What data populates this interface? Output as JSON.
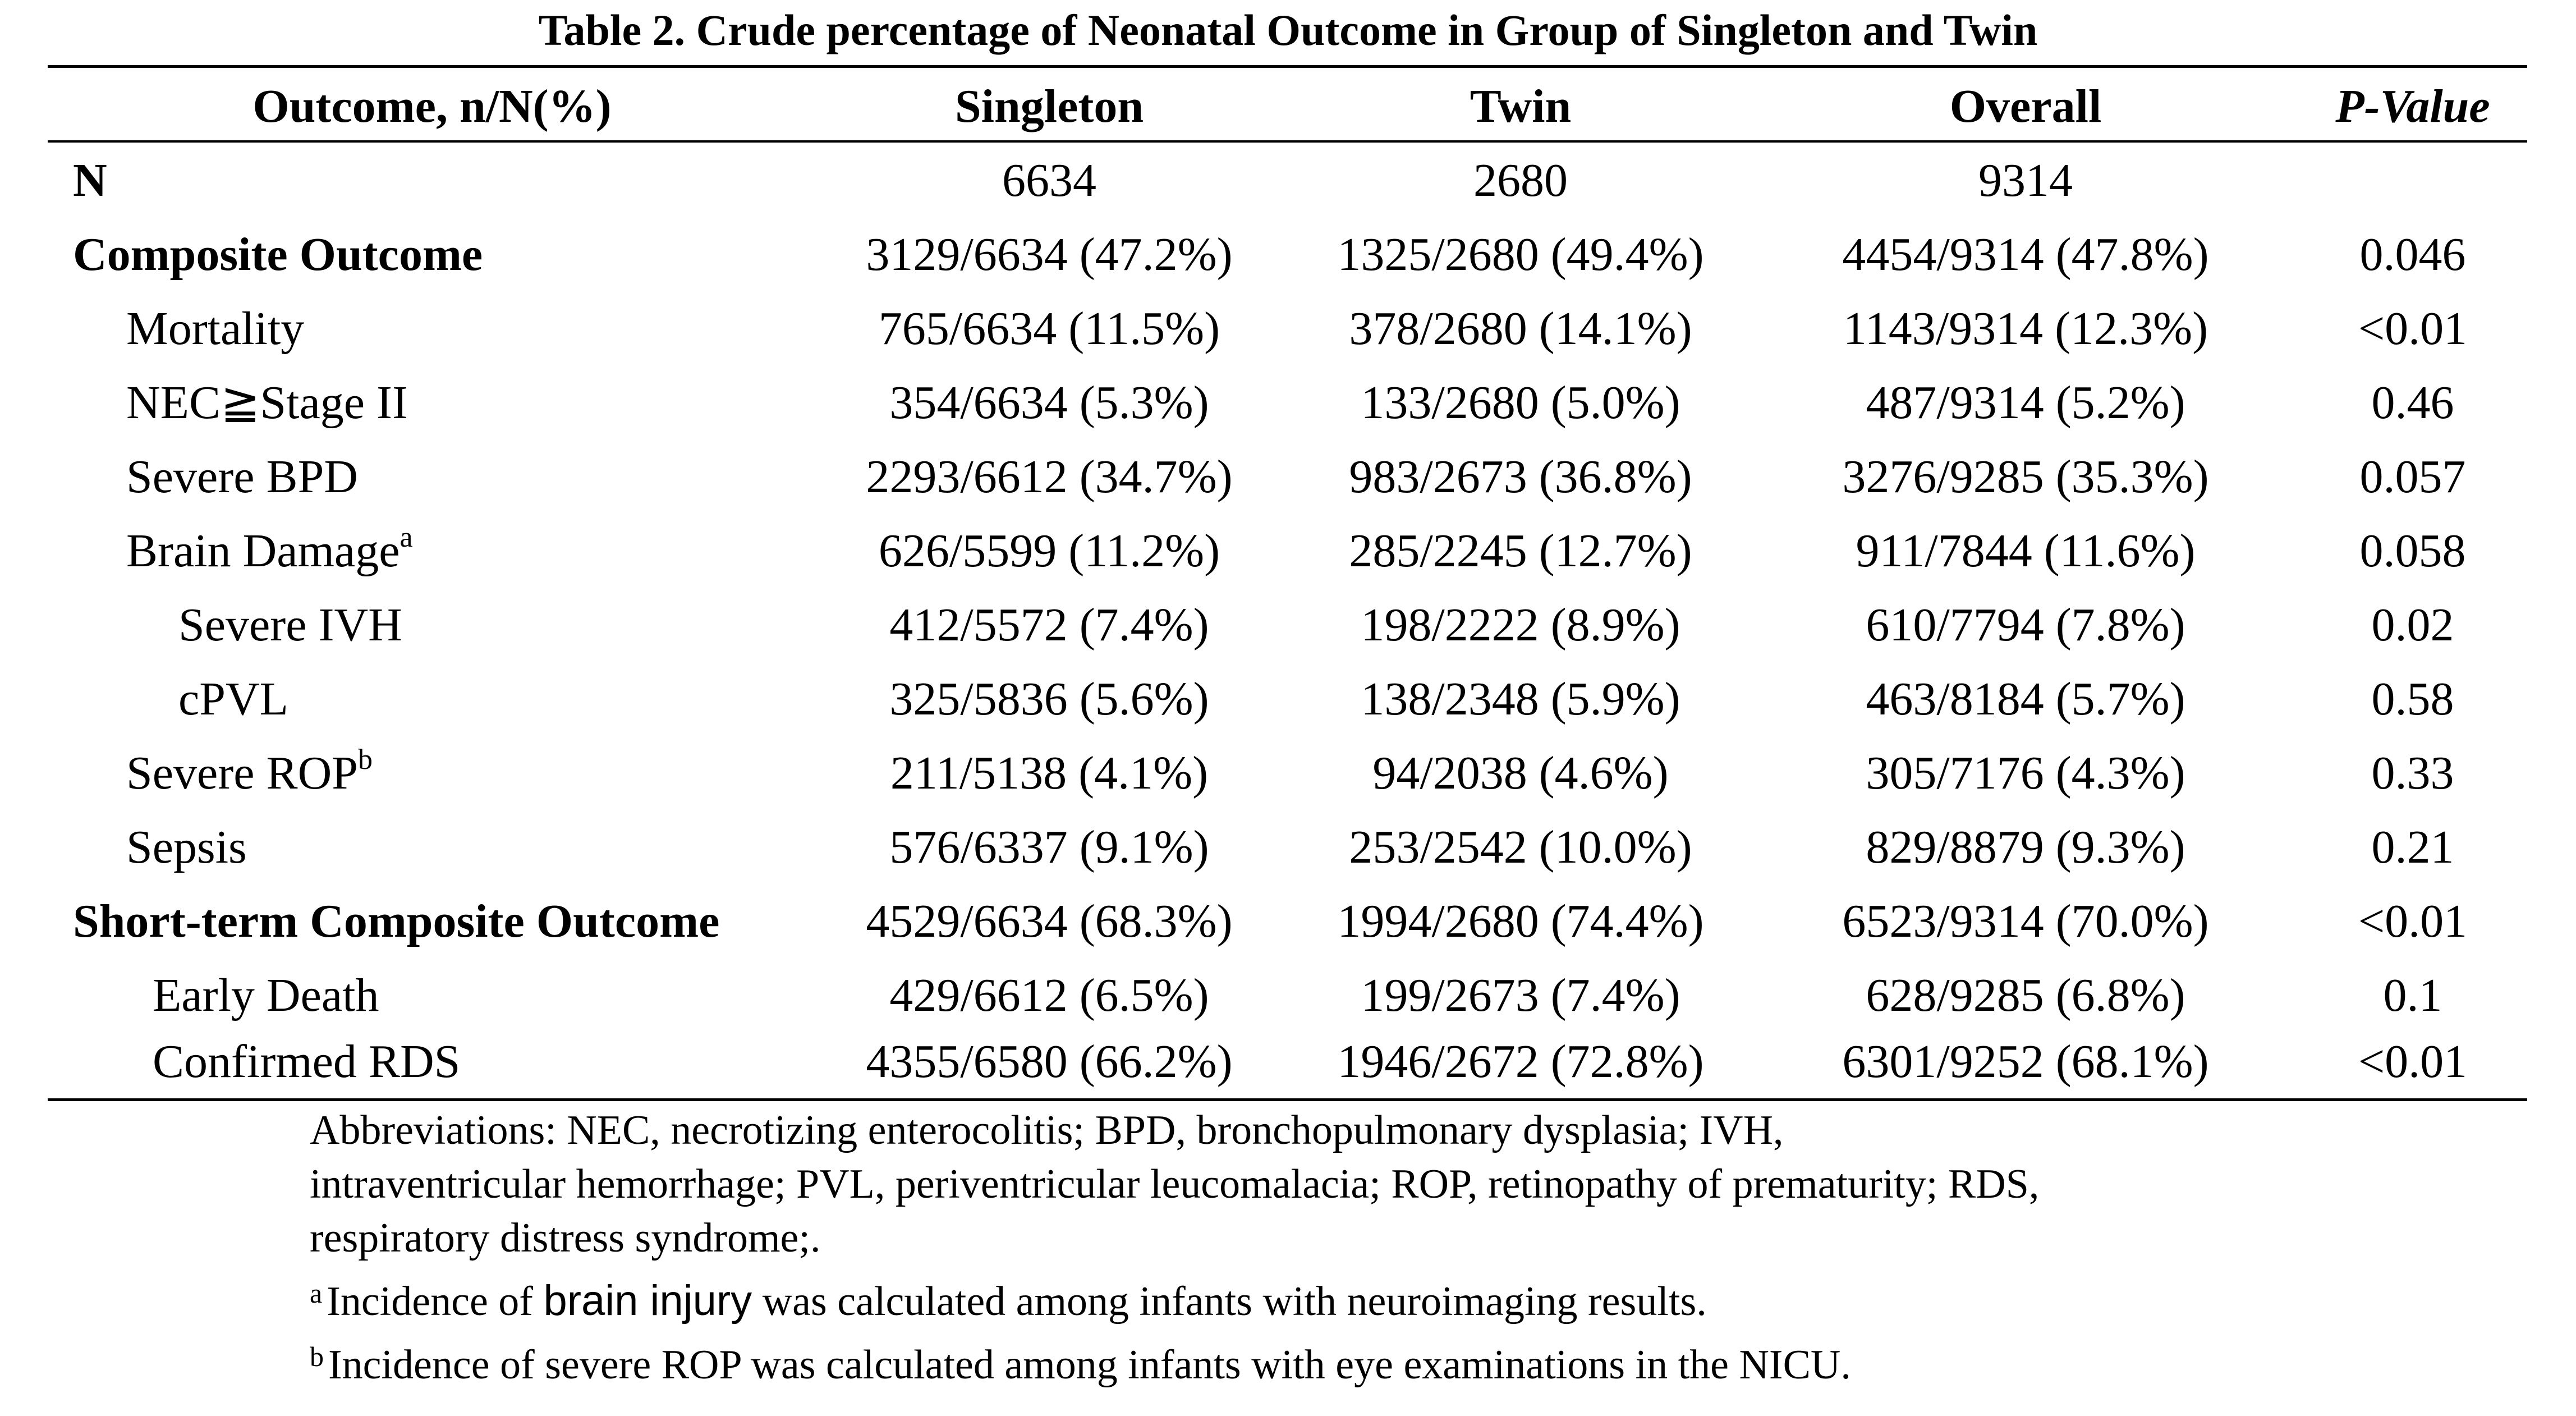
{
  "title": "Table 2. Crude percentage of Neonatal Outcome in Group of Singleton and Twin",
  "headers": {
    "outcome": "Outcome, n/N(%)",
    "singleton": "Singleton",
    "twin": "Twin",
    "overall": "Overall",
    "pvalue": "P-Value"
  },
  "rows": [
    {
      "label": "N",
      "sup": "",
      "singleton": "6634",
      "twin": "2680",
      "overall": "9314",
      "pvalue": ""
    },
    {
      "label": "Composite Outcome",
      "sup": "",
      "singleton": "3129/6634 (47.2%)",
      "twin": "1325/2680 (49.4%)",
      "overall": "4454/9314 (47.8%)",
      "pvalue": "0.046"
    },
    {
      "label": "Mortality",
      "sup": "",
      "singleton": "765/6634 (11.5%)",
      "twin": "378/2680 (14.1%)",
      "overall": "1143/9314 (12.3%)",
      "pvalue": "<0.01"
    },
    {
      "label": "NEC≧Stage II",
      "sup": "",
      "singleton": "354/6634 (5.3%)",
      "twin": "133/2680 (5.0%)",
      "overall": "487/9314 (5.2%)",
      "pvalue": "0.46"
    },
    {
      "label": "Severe BPD",
      "sup": "",
      "singleton": "2293/6612 (34.7%)",
      "twin": "983/2673 (36.8%)",
      "overall": "3276/9285 (35.3%)",
      "pvalue": "0.057"
    },
    {
      "label": "Brain Damage",
      "sup": "a",
      "singleton": "626/5599 (11.2%)",
      "twin": "285/2245 (12.7%)",
      "overall": "911/7844 (11.6%)",
      "pvalue": "0.058"
    },
    {
      "label": "Severe IVH",
      "sup": "",
      "singleton": "412/5572 (7.4%)",
      "twin": "198/2222 (8.9%)",
      "overall": "610/7794 (7.8%)",
      "pvalue": "0.02"
    },
    {
      "label": "cPVL",
      "sup": "",
      "singleton": "325/5836 (5.6%)",
      "twin": "138/2348 (5.9%)",
      "overall": "463/8184 (5.7%)",
      "pvalue": "0.58"
    },
    {
      "label": "Severe ROP",
      "sup": "b",
      "singleton": "211/5138 (4.1%)",
      "twin": "94/2038 (4.6%)",
      "overall": "305/7176 (4.3%)",
      "pvalue": "0.33"
    },
    {
      "label": "Sepsis",
      "sup": "",
      "singleton": "576/6337 (9.1%)",
      "twin": "253/2542 (10.0%)",
      "overall": "829/8879 (9.3%)",
      "pvalue": "0.21"
    },
    {
      "label": "Short-term Composite Outcome",
      "sup": "",
      "singleton": "4529/6634 (68.3%)",
      "twin": "1994/2680 (74.4%)",
      "overall": "6523/9314 (70.0%)",
      "pvalue": "<0.01"
    },
    {
      "label": "Early Death",
      "sup": "",
      "singleton": "429/6612 (6.5%)",
      "twin": "199/2673 (7.4%)",
      "overall": "628/9285 (6.8%)",
      "pvalue": "0.1"
    },
    {
      "label": "Confirmed RDS",
      "sup": "",
      "singleton": "4355/6580 (66.2%)",
      "twin": "1946/2672 (72.8%)",
      "overall": "6301/9252 (68.1%)",
      "pvalue": "<0.01"
    }
  ],
  "footnotes": {
    "abbreviations_line1": "Abbreviations: NEC, necrotizing enterocolitis; BPD, bronchopulmonary dysplasia; IVH,",
    "abbreviations_line2": "intraventricular hemorrhage; PVL, periventricular leucomalacia; ROP, retinopathy of prematurity; RDS,",
    "abbreviations_line3": "respiratory distress syndrome;.",
    "a_mark": "a",
    "a_before": "Incidence of ",
    "a_term": "brain injury",
    "a_after": " was calculated among infants with neuroimaging results.",
    "b_mark": "b",
    "b_text": "Incidence of severe ROP was calculated among infants with eye examinations in the NICU."
  }
}
